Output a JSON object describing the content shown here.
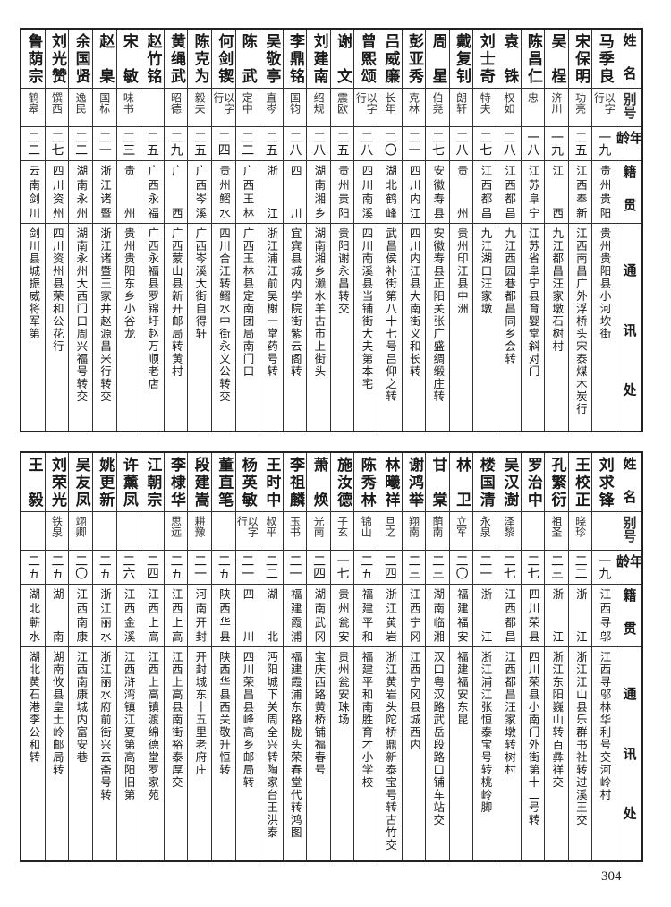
{
  "headers": {
    "name": "姓名",
    "alias": "别号",
    "age": "年龄",
    "native": "籍贯",
    "address": "通讯处"
  },
  "top_table": [
    {
      "name": "马季良",
      "alias": "以字行",
      "age": "一九",
      "native": "贵州贵阳",
      "address": "贵州贵阳县小河坎街"
    },
    {
      "name": "宋保明",
      "alias": "功亮",
      "age": "二五",
      "native": "江西奉新",
      "address": "江西南昌广外浮桥头宋泰煤木炭行"
    },
    {
      "name": "吴桯",
      "alias": "济川",
      "age": "一九",
      "native": "江西",
      "address": "九江都昌汪家墩石树村"
    },
    {
      "name": "陈昌仁",
      "alias": "忠",
      "age": "一八",
      "native": "江苏阜宁",
      "address": "江苏省阜宁县育婴堂斜对门"
    },
    {
      "name": "袁铢",
      "alias": "权如",
      "age": "二八",
      "native": "江西都昌",
      "address": "九江西园巷都昌同乡会转"
    },
    {
      "name": "刘士奇",
      "alias": "特夫",
      "age": "二七",
      "native": "江西都昌",
      "address": "九江湖口汪家墩"
    },
    {
      "name": "戴复钊",
      "alias": "朗轩",
      "age": "二八",
      "native": "贵州",
      "address": "贵州印江县中洲"
    },
    {
      "name": "周星",
      "alias": "伯尧",
      "age": "二七",
      "native": "安徽寿县",
      "address": "安徽寿县正阳关张广盛绸缎庄转"
    },
    {
      "name": "彭亚秀",
      "alias": "克林",
      "age": "二一",
      "native": "四川内江",
      "address": "四川内江县大南街义和长转"
    },
    {
      "name": "吕威廉",
      "alias": "长年",
      "age": "二〇",
      "native": "湖北鹤峰",
      "address": "武昌侯补街第八十七号吕仰之转"
    },
    {
      "name": "曾熙颂",
      "alias": "以字行",
      "age": "二八",
      "native": "四川南溪",
      "address": "四川南溪县当铺街大夫第本宅"
    },
    {
      "name": "谢文",
      "alias": "震欧",
      "age": "二五",
      "native": "贵州贵阳",
      "address": "贵阳谢永昌转交"
    },
    {
      "name": "刘建南",
      "alias": "绍规",
      "age": "二八",
      "native": "湖南湘乡",
      "address": "湖南湘乡濑水羊古市上街头"
    },
    {
      "name": "李鼎铭",
      "alias": "国钧",
      "age": "二八",
      "native": "四川",
      "address": "宜宾县城内学院街紫云阁转"
    },
    {
      "name": "吴敬亭",
      "alias": "直岑",
      "age": "二五",
      "native": "浙江",
      "address": "浙江浦江前吴榭一堂药号转"
    },
    {
      "name": "陈武",
      "alias": "定中",
      "age": "二二",
      "native": "广西玉林",
      "address": "广西玉林县定南团局南门口"
    },
    {
      "name": "何剑锲",
      "alias": "以字行",
      "age": "二四",
      "native": "贵州鳛水",
      "address": "四川合江转鳛水中街永义公转交"
    },
    {
      "name": "陈克为",
      "alias": "毅夫",
      "age": "二五",
      "native": "广西岑溪",
      "address": "广西岑溪大街自得轩"
    },
    {
      "name": "黄绳武",
      "alias": "昭德",
      "age": "二九",
      "native": "广西",
      "address": "广西蒙山县新开邮局转黄村"
    },
    {
      "name": "赵竹铭",
      "alias": "",
      "age": "二五",
      "native": "广西永福",
      "address": "广西永福县罗锦圩赵万顺老店"
    },
    {
      "name": "宋敏",
      "alias": "味书",
      "age": "二三",
      "native": "贵州",
      "address": "贵州贵阳东乡小谷龙"
    },
    {
      "name": "赵臬",
      "alias": "国标",
      "age": "二一",
      "native": "浙江诸暨",
      "address": "浙江诸暨王家井赵源昌米行转交"
    },
    {
      "name": "余国贤",
      "alias": "逸民",
      "age": "二二",
      "native": "湖南永州",
      "address": "湖南永州大西门口周兴福号转交"
    },
    {
      "name": "刘光赞",
      "alias": "馔西",
      "age": "二七",
      "native": "四川资州",
      "address": "四川资州县荣和公花行"
    },
    {
      "name": "鲁荫宗",
      "alias": "鹤皋",
      "age": "二二",
      "native": "云南剑川",
      "address": "剑川县城振威将军第"
    }
  ],
  "bottom_table": [
    {
      "name": "刘求锋",
      "alias": "",
      "age": "一九",
      "native": "江西寻邬",
      "address": "江西寻邬林华利号交河岭村"
    },
    {
      "name": "王校正",
      "alias": "晓珍",
      "age": "二二",
      "native": "浙江",
      "address": "浙江江山县乐群书社转过溪王交"
    },
    {
      "name": "孔繁衍",
      "alias": "祖圣",
      "age": "二三",
      "native": "浙江",
      "address": "浙江东阳巍山转百彝祥交"
    },
    {
      "name": "罗治中",
      "alias": "",
      "age": "二七",
      "native": "四川荣县",
      "address": "四川荣县小南门外街第十二号转"
    },
    {
      "name": "吴汉澍",
      "alias": "泽黎",
      "age": "二七",
      "native": "江西都昌",
      "address": "江西都昌汪家墩转树村"
    },
    {
      "name": "楼国清",
      "alias": "永泉",
      "age": "二一",
      "native": "浙江",
      "address": "浙江浦江张恒泰宝号转桃岭脚"
    },
    {
      "name": "林卫",
      "alias": "立军",
      "age": "二〇",
      "native": "福建福安",
      "address": "福建福安东昆"
    },
    {
      "name": "甘棠",
      "alias": "荫南",
      "age": "二三",
      "native": "湖南临湘",
      "address": "汉口粤汉路武岳段路口铺车站交"
    },
    {
      "name": "谢鸿举",
      "alias": "翔南",
      "age": "二三",
      "native": "江西宁冈",
      "address": "江西宁冈县城西内"
    },
    {
      "name": "林曦祥",
      "alias": "旦之",
      "age": "二四",
      "native": "浙江黄岩",
      "address": "浙江黄岩头陀桥鼎新泰宝号转古竹交"
    },
    {
      "name": "陈秀林",
      "alias": "锦山",
      "age": "二五",
      "native": "福建平和",
      "address": "福建平和南胜育才小学校"
    },
    {
      "name": "施汝德",
      "alias": "子玄",
      "age": "一七",
      "native": "贵州瓮安",
      "address": "贵州瓮安珠场"
    },
    {
      "name": "萧焕",
      "alias": "光南",
      "age": "二四",
      "native": "湖南武冈",
      "address": "宝庆西路黄桥铺福春号"
    },
    {
      "name": "李祖麟",
      "alias": "玉书",
      "age": "二一",
      "native": "福建霞浦",
      "address": "福建霞浦东路陇头荣春堂代转鸿图"
    },
    {
      "name": "王时中",
      "alias": "叔平",
      "age": "二二",
      "native": "湖北",
      "address": "沔阳城下关周全兴转陶家台王洪泰"
    },
    {
      "name": "杨英敏",
      "alias": "以字行",
      "age": "二一",
      "native": "四川",
      "address": "四川荣昌县峰高乡邮局转"
    },
    {
      "name": "董直笔",
      "alias": "",
      "age": "二五",
      "native": "陕西华县",
      "address": "陕西华县西关敬升恒转"
    },
    {
      "name": "段建嵩",
      "alias": "耕豫",
      "age": "二一",
      "native": "河南开封",
      "address": "开封城东十五里老府庄"
    },
    {
      "name": "李棣华",
      "alias": "思远",
      "age": "二五",
      "native": "江西上高",
      "address": "江西上高县南街裕泰厚交"
    },
    {
      "name": "江朝宗",
      "alias": "",
      "age": "二四",
      "native": "江西上高",
      "address": "江西上高镇渡绵德堂罗家苑"
    },
    {
      "name": "许薰凤",
      "alias": "",
      "age": "二六",
      "native": "江西金溪",
      "address": "江西浒湾镇江夏第高阳旧第"
    },
    {
      "name": "姚更新",
      "alias": "",
      "age": "二五",
      "native": "浙江丽水",
      "address": "浙江丽水府前街兴云斋号转"
    },
    {
      "name": "吴友凤",
      "alias": "翊卿",
      "age": "二〇",
      "native": "江西南康",
      "address": "江西南康城内富安巷"
    },
    {
      "name": "刘荣光",
      "alias": "铁泉",
      "age": "二五",
      "native": "湖南",
      "address": "湖南攸县皇土岭邮局转"
    },
    {
      "name": "王毅",
      "alias": "",
      "age": "二五",
      "native": "湖北蕲水",
      "address": "湖北黄石港李公和转"
    }
  ],
  "page_number": "304"
}
